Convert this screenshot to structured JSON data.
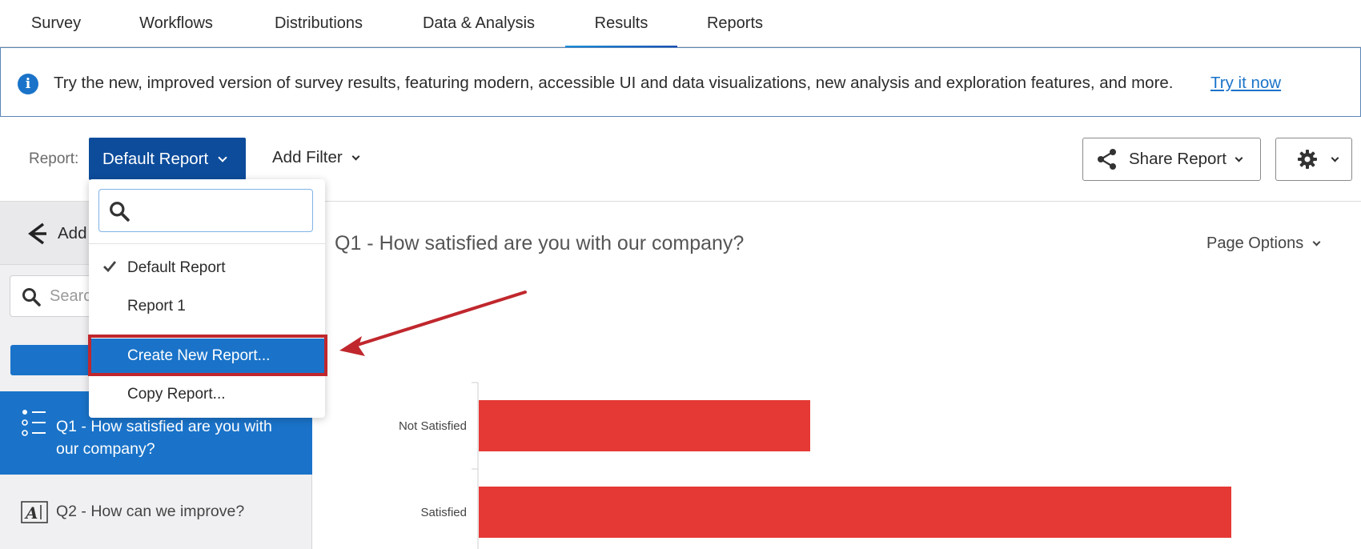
{
  "nav": {
    "tabs": [
      {
        "label": "Survey"
      },
      {
        "label": "Workflows"
      },
      {
        "label": "Distributions"
      },
      {
        "label": "Data & Analysis"
      },
      {
        "label": "Results",
        "active": true
      },
      {
        "label": "Reports"
      }
    ]
  },
  "banner": {
    "icon": "info-icon",
    "text": "Try the new, improved version of survey results, featuring modern, accessible UI and data visualizations, new analysis and exploration features, and more.",
    "link": "Try it now"
  },
  "toolbar": {
    "report_label": "Report:",
    "report_button": "Default Report",
    "add_filter": "Add Filter",
    "share_report": "Share Report"
  },
  "report_menu": {
    "search_placeholder": "",
    "items": [
      {
        "label": "Default Report",
        "checked": true
      },
      {
        "label": "Report 1"
      },
      {
        "label": "Create New Report...",
        "highlighted": true
      },
      {
        "label": "Copy Report..."
      }
    ]
  },
  "left_panel": {
    "add_page_label": "Add",
    "search_placeholder": "Search",
    "add_button": "+",
    "questions": [
      {
        "label": "Q1 - How satisfied are you with our company?",
        "active": true,
        "icon": "multiple-choice-icon"
      },
      {
        "label": "Q2 - How can we improve?",
        "active": false,
        "icon": "text-entry-icon"
      }
    ]
  },
  "main": {
    "question_title": "Q1 - How satisfied are you with our company?",
    "page_options": "Page Options"
  },
  "chart_data": {
    "type": "bar",
    "orientation": "horizontal",
    "categories": [
      "Not Satisfied",
      "Satisfied"
    ],
    "values": [
      44,
      100
    ],
    "color": "#e53935"
  },
  "colors": {
    "accent": "#1a73c9",
    "report_button": "#0d4c9b",
    "bar": "#e53935",
    "annotation": "#c0272d"
  }
}
